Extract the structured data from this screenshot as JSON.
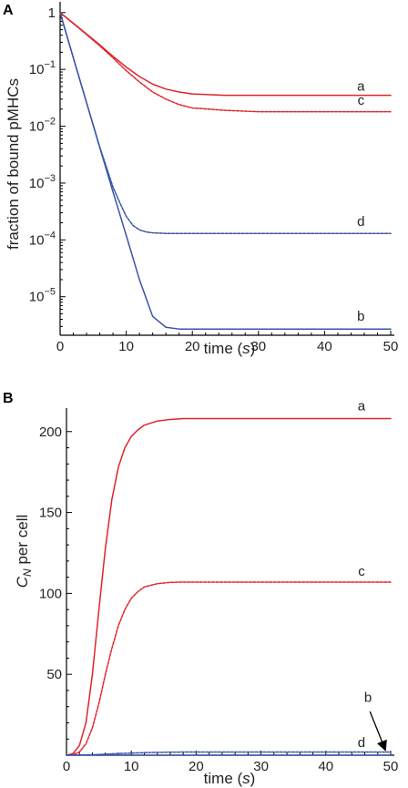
{
  "chart_data": [
    {
      "type": "line",
      "panel_label": "A",
      "xlabel_main": "time",
      "xlabel_unit": "s",
      "ylabel": "fraction of bound pMHCs",
      "xlim": [
        0,
        50
      ],
      "ylim": [
        2.1e-06,
        1.15
      ],
      "yscale": "log",
      "xticks": [
        0,
        10,
        20,
        30,
        40,
        50
      ],
      "yticks": [
        {
          "value": 1,
          "base": "1",
          "exp": ""
        },
        {
          "value": 0.1,
          "base": "10",
          "exp": "−1"
        },
        {
          "value": 0.01,
          "base": "10",
          "exp": "−2"
        },
        {
          "value": 0.001,
          "base": "10",
          "exp": "−3"
        },
        {
          "value": 0.0001,
          "base": "10",
          "exp": "−4"
        },
        {
          "value": 1e-05,
          "base": "10",
          "exp": "−5"
        }
      ],
      "series": [
        {
          "label": "a",
          "color": "#e0242b",
          "style": "solid",
          "x": [
            0,
            2,
            4,
            6,
            8,
            10,
            12,
            14,
            16,
            18,
            20,
            25,
            30,
            40,
            50
          ],
          "y": [
            1,
            0.65,
            0.42,
            0.27,
            0.17,
            0.11,
            0.075,
            0.055,
            0.045,
            0.04,
            0.037,
            0.035,
            0.035,
            0.035,
            0.035
          ]
        },
        {
          "label": "c",
          "color": "#e0242b",
          "style": "dashed",
          "x": [
            0,
            2,
            4,
            6,
            8,
            10,
            12,
            14,
            16,
            18,
            20,
            25,
            30,
            40,
            50
          ],
          "y": [
            1,
            0.64,
            0.41,
            0.26,
            0.16,
            0.095,
            0.06,
            0.04,
            0.03,
            0.024,
            0.021,
            0.019,
            0.018,
            0.018,
            0.018
          ]
        },
        {
          "label": "b",
          "color": "#3a55a8",
          "style": "solid",
          "x": [
            0,
            2,
            4,
            6,
            8,
            10,
            12,
            14,
            16,
            18,
            20,
            25,
            30,
            40,
            50
          ],
          "y": [
            1,
            0.16,
            0.026,
            0.0042,
            0.0007,
            0.00012,
            2e-05,
            4.5e-06,
            2.9e-06,
            2.7e-06,
            2.7e-06,
            2.7e-06,
            2.7e-06,
            2.7e-06,
            2.7e-06
          ]
        },
        {
          "label": "d",
          "color": "#3a55a8",
          "style": "dashed",
          "x": [
            0,
            2,
            4,
            6,
            8,
            9,
            10,
            11,
            12,
            13,
            14,
            16,
            20,
            30,
            40,
            50
          ],
          "y": [
            1,
            0.16,
            0.026,
            0.0043,
            0.00085,
            0.00046,
            0.00026,
            0.00018,
            0.00015,
            0.000138,
            0.000133,
            0.00013,
            0.00013,
            0.00013,
            0.00013,
            0.00013
          ]
        }
      ],
      "curve_labels": [
        {
          "text": "a",
          "x": 45.5,
          "y": 0.042
        },
        {
          "text": "c",
          "x": 45.5,
          "y": 0.024
        },
        {
          "text": "d",
          "x": 45.5,
          "y": 0.000175
        },
        {
          "text": "b",
          "x": 45.5,
          "y": 3.8e-06
        }
      ]
    },
    {
      "type": "line",
      "panel_label": "B",
      "xlabel_main": "time",
      "xlabel_unit": "s",
      "ylabel_main": "C",
      "ylabel_sub": "N",
      "ylabel_rest": " per cell",
      "xlim": [
        0,
        50
      ],
      "ylim": [
        0,
        210
      ],
      "yscale": "linear",
      "xticks": [
        0,
        10,
        20,
        30,
        40,
        50
      ],
      "yticks": [
        50,
        100,
        150,
        200
      ],
      "series": [
        {
          "label": "a",
          "color": "#e0242b",
          "style": "solid",
          "x": [
            0,
            1,
            2,
            3,
            4,
            5,
            6,
            7,
            8,
            9,
            10,
            11,
            12,
            14,
            16,
            18,
            20,
            30,
            40,
            50
          ],
          "y": [
            0,
            1,
            6,
            20,
            50,
            90,
            128,
            158,
            178,
            190,
            197,
            201,
            204,
            206.5,
            207.5,
            208,
            208,
            208,
            208,
            208
          ]
        },
        {
          "label": "c",
          "color": "#e0242b",
          "style": "dashed",
          "x": [
            0,
            1,
            2,
            3,
            4,
            5,
            6,
            7,
            8,
            9,
            10,
            11,
            12,
            14,
            16,
            18,
            20,
            30,
            40,
            50
          ],
          "y": [
            0,
            0.3,
            2,
            7,
            17,
            32,
            50,
            66,
            80,
            90,
            97,
            101,
            104,
            106,
            106.8,
            107,
            107,
            107,
            107,
            107
          ]
        },
        {
          "label": "d",
          "color": "#3a55a8",
          "style": "dashed",
          "x": [
            0,
            4,
            8,
            12,
            16,
            20,
            30,
            40,
            50
          ],
          "y": [
            0,
            0.3,
            1,
            1.6,
            1.9,
            2,
            2,
            2,
            2
          ]
        },
        {
          "label": "b",
          "color": "#3a55a8",
          "style": "solid",
          "x": [
            0,
            10,
            20,
            30,
            40,
            50
          ],
          "y": [
            0,
            0.02,
            0.02,
            0.02,
            0.02,
            0.02
          ]
        }
      ],
      "curve_labels": [
        {
          "text": "a",
          "x": 45.5,
          "y": 213
        },
        {
          "text": "c",
          "x": 45.5,
          "y": 111
        },
        {
          "text": "b",
          "x": 46.5,
          "y": 33
        },
        {
          "text": "d",
          "x": 45.5,
          "y": 5
        }
      ],
      "annotation_arrow": {
        "label": "b",
        "from": [
          46.8,
          27
        ],
        "to": [
          49.2,
          3
        ]
      }
    }
  ]
}
